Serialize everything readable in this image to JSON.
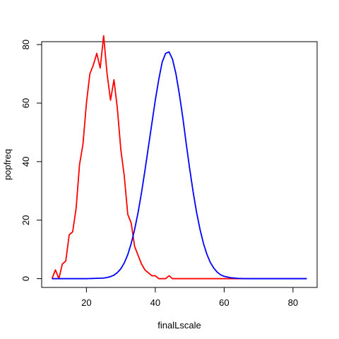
{
  "chart_data": {
    "type": "line",
    "xlabel": "finalLscale",
    "ylabel": "popfreq",
    "xlim": [
      7,
      87
    ],
    "ylim": [
      -3,
      81
    ],
    "xticks": [
      20,
      40,
      60,
      80
    ],
    "yticks": [
      0,
      20,
      40,
      60,
      80
    ],
    "grid": false,
    "series": [
      {
        "color": "#ff0000",
        "x": [
          10,
          11,
          12,
          13,
          14,
          15,
          16,
          17,
          18,
          19,
          20,
          21,
          22,
          23,
          24,
          25,
          26,
          27,
          28,
          29,
          30,
          31,
          32,
          33,
          34,
          35,
          36,
          37,
          38,
          39,
          40,
          41,
          42,
          43,
          44,
          45,
          46,
          47,
          48,
          49,
          50,
          55,
          60,
          65,
          70,
          75,
          80,
          84
        ],
        "y": [
          0,
          3,
          0,
          5,
          6,
          15,
          16,
          24,
          39,
          46,
          60,
          70,
          73,
          77,
          72,
          83,
          70,
          61,
          68,
          58,
          44,
          35,
          22,
          19,
          11,
          8,
          5,
          3,
          2,
          1,
          1,
          0,
          0,
          0,
          1,
          0,
          0,
          0,
          0,
          0,
          0,
          0,
          0,
          0,
          0,
          0,
          0,
          0
        ]
      },
      {
        "color": "#0000ff",
        "x": [
          10,
          20,
          25,
          26,
          27,
          28,
          29,
          30,
          31,
          32,
          33,
          34,
          35,
          36,
          37,
          38,
          39,
          40,
          41,
          42,
          43,
          44,
          45,
          46,
          47,
          48,
          49,
          50,
          51,
          52,
          53,
          54,
          55,
          56,
          57,
          58,
          59,
          60,
          62,
          64,
          66,
          70,
          75,
          80,
          84
        ],
        "y": [
          0,
          0,
          0.2,
          0.4,
          0.7,
          1.2,
          2.1,
          3.4,
          5.4,
          8.2,
          12,
          16.8,
          22.6,
          29.4,
          37,
          45,
          53,
          61,
          68,
          74,
          77,
          77.5,
          75,
          70,
          63,
          55,
          46,
          37.5,
          29.6,
          22.6,
          16.8,
          12,
          8.3,
          5.5,
          3.6,
          2.2,
          1.3,
          0.8,
          0.3,
          0.1,
          0,
          0,
          0,
          0,
          0
        ]
      }
    ]
  }
}
